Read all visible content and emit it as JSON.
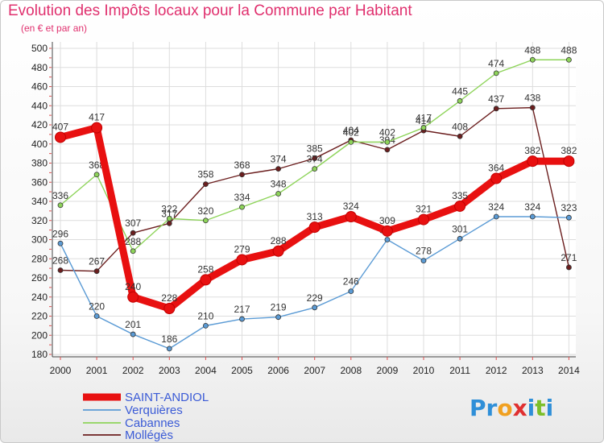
{
  "title": "Evolution des Impôts locaux pour la Commune par Habitant",
  "subtitle": "(en € et par an)",
  "logo": {
    "text": "Proxiti",
    "letters": [
      "P",
      "r",
      "o",
      "x",
      "i",
      "t",
      "i"
    ],
    "colors": [
      "#2f8fd8",
      "#2f8fd8",
      "#f0a020",
      "#e03030",
      "#2f8fd8",
      "#7cbf2a",
      "#2f8fd8"
    ]
  },
  "chart_data": {
    "type": "line",
    "categories": [
      "2000",
      "2001",
      "2002",
      "2003",
      "2004",
      "2005",
      "2006",
      "2007",
      "2008",
      "2009",
      "2010",
      "2011",
      "2012",
      "2013",
      "2014"
    ],
    "ylim": [
      180,
      500
    ],
    "yticks": [
      180,
      200,
      220,
      240,
      260,
      280,
      300,
      320,
      340,
      360,
      380,
      400,
      420,
      440,
      460,
      480,
      500
    ],
    "grid": true,
    "legend_position": "bottom-left",
    "series": [
      {
        "name": "SAINT-ANDIOL",
        "color": "#e81010",
        "thick": true,
        "values": [
          407,
          417,
          240,
          228,
          258,
          279,
          288,
          313,
          324,
          309,
          321,
          335,
          364,
          382,
          382
        ]
      },
      {
        "name": "Verquières",
        "color": "#5b9bd5",
        "values": [
          296,
          220,
          201,
          186,
          210,
          217,
          219,
          229,
          246,
          300,
          278,
          301,
          324,
          324,
          323
        ]
      },
      {
        "name": "Cabannes",
        "color": "#8ed45a",
        "values": [
          336,
          368,
          288,
          322,
          320,
          334,
          348,
          374,
          402,
          402,
          417,
          445,
          474,
          488,
          488
        ]
      },
      {
        "name": "Mollégès",
        "color": "#6b1e1e",
        "values": [
          268,
          267,
          307,
          317,
          358,
          368,
          374,
          385,
          404,
          394,
          414,
          408,
          437,
          438,
          271
        ]
      }
    ]
  }
}
